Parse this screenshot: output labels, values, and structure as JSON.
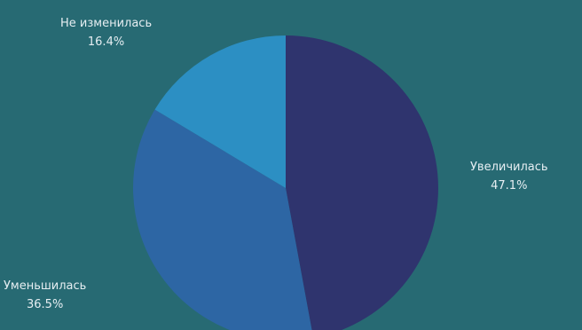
{
  "chart_data": {
    "type": "pie",
    "slices": [
      {
        "label": "Увеличилась",
        "value": 47.1,
        "value_label": "47.1%",
        "color": "#2f346e"
      },
      {
        "label": "Уменьшилась",
        "value": 36.5,
        "value_label": "36.5%",
        "color": "#2d66a4"
      },
      {
        "label": "Не изменилась",
        "value": 16.4,
        "value_label": "16.4%",
        "color": "#2c8fc3"
      }
    ],
    "legend": "none",
    "background": "#276a73"
  }
}
